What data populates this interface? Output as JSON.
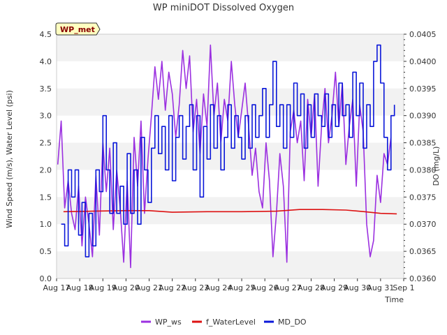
{
  "chart_data": {
    "type": "line",
    "title": "WP miniDOT Dissolved Oxygen",
    "xlabel": "Time",
    "ylabel": "Wind Speed (m/s), Water Level (psi)",
    "y2label": "DO (mg/L)",
    "annotation": "WP_met",
    "x_tick_labels": [
      "Aug 17",
      "Aug 18",
      "Aug 19",
      "Aug 20",
      "Aug 21",
      "Aug 22",
      "Aug 23",
      "Aug 24",
      "Aug 25",
      "Aug 26",
      "Aug 27",
      "Aug 28",
      "Aug 29",
      "Aug 30",
      "Aug 31",
      "Sep 1"
    ],
    "xlim": [
      0,
      15
    ],
    "ylim": [
      0,
      4.5
    ],
    "y_ticks": [
      0.0,
      0.5,
      1.0,
      1.5,
      2.0,
      2.5,
      3.0,
      3.5,
      4.0,
      4.5
    ],
    "y2lim": [
      0.036,
      0.0405
    ],
    "y2_ticks": [
      0.036,
      0.0365,
      0.037,
      0.0375,
      0.038,
      0.0385,
      0.039,
      0.0395,
      0.04,
      0.0405
    ],
    "legend_position": "bottom",
    "grid": "alternating horizontal bands",
    "series": [
      {
        "name": "WP_ws",
        "color": "#9b30e0",
        "axis": "left",
        "x": [
          0.05,
          0.2,
          0.35,
          0.5,
          0.65,
          0.8,
          0.95,
          1.1,
          1.25,
          1.4,
          1.55,
          1.7,
          1.85,
          2.0,
          2.15,
          2.3,
          2.45,
          2.6,
          2.75,
          2.9,
          3.05,
          3.2,
          3.35,
          3.5,
          3.65,
          3.8,
          3.95,
          4.1,
          4.25,
          4.4,
          4.55,
          4.7,
          4.85,
          5.0,
          5.15,
          5.3,
          5.45,
          5.6,
          5.75,
          5.9,
          6.05,
          6.2,
          6.35,
          6.5,
          6.65,
          6.8,
          6.95,
          7.1,
          7.25,
          7.4,
          7.55,
          7.7,
          7.85,
          8.0,
          8.15,
          8.3,
          8.45,
          8.6,
          8.75,
          8.9,
          9.05,
          9.2,
          9.35,
          9.5,
          9.65,
          9.8,
          9.95,
          10.1,
          10.25,
          10.4,
          10.55,
          10.7,
          10.85,
          11.0,
          11.15,
          11.3,
          11.45,
          11.6,
          11.75,
          11.9,
          12.05,
          12.2,
          12.35,
          12.5,
          12.65,
          12.8,
          12.95,
          13.1,
          13.25,
          13.4,
          13.55,
          13.7,
          13.85,
          14.0,
          14.15,
          14.3,
          14.45
        ],
        "values": [
          2.1,
          2.9,
          1.3,
          1.8,
          1.2,
          0.9,
          1.7,
          0.6,
          1.5,
          1.0,
          0.4,
          1.9,
          0.8,
          2.5,
          1.6,
          2.4,
          0.9,
          2.0,
          1.3,
          0.3,
          1.8,
          0.2,
          2.6,
          1.7,
          2.9,
          1.2,
          2.2,
          3.0,
          3.9,
          3.3,
          4.0,
          3.1,
          3.8,
          3.4,
          2.6,
          3.2,
          4.2,
          3.5,
          4.1,
          2.7,
          3.3,
          2.3,
          3.4,
          2.8,
          4.3,
          3.0,
          3.6,
          2.5,
          3.3,
          2.9,
          4.0,
          3.2,
          2.6,
          3.1,
          3.6,
          2.8,
          1.9,
          2.4,
          1.6,
          1.3,
          2.5,
          1.8,
          0.4,
          1.2,
          2.3,
          1.7,
          0.3,
          2.7,
          3.1,
          2.5,
          2.9,
          1.8,
          3.3,
          2.6,
          3.4,
          1.7,
          2.8,
          3.5,
          2.5,
          3.0,
          3.8,
          2.8,
          3.6,
          2.1,
          2.8,
          3.3,
          1.7,
          3.2,
          2.7,
          1.0,
          0.4,
          0.7,
          1.9,
          1.4,
          2.3,
          2.1,
          2.6
        ]
      },
      {
        "name": "f_WaterLevel",
        "color": "#dd1111",
        "axis": "left",
        "x": [
          0.3,
          1.5,
          3.0,
          4.0,
          5.0,
          6.5,
          8.0,
          9.5,
          10.5,
          11.5,
          12.5,
          13.3,
          14.0,
          14.7
        ],
        "values": [
          1.23,
          1.24,
          1.25,
          1.25,
          1.22,
          1.23,
          1.23,
          1.24,
          1.27,
          1.27,
          1.26,
          1.23,
          1.2,
          1.19
        ]
      },
      {
        "name": "MD_DO",
        "color": "#0a17d9",
        "axis": "right",
        "x": [
          0.2,
          0.35,
          0.5,
          0.65,
          0.8,
          0.95,
          1.1,
          1.25,
          1.4,
          1.55,
          1.7,
          1.85,
          2.0,
          2.15,
          2.3,
          2.45,
          2.6,
          2.75,
          2.9,
          3.05,
          3.2,
          3.35,
          3.5,
          3.65,
          3.8,
          3.95,
          4.1,
          4.25,
          4.4,
          4.55,
          4.7,
          4.85,
          5.0,
          5.15,
          5.3,
          5.45,
          5.6,
          5.75,
          5.9,
          6.05,
          6.2,
          6.35,
          6.5,
          6.65,
          6.8,
          6.95,
          7.1,
          7.25,
          7.4,
          7.55,
          7.7,
          7.85,
          8.0,
          8.15,
          8.3,
          8.45,
          8.6,
          8.75,
          8.9,
          9.05,
          9.2,
          9.35,
          9.5,
          9.65,
          9.8,
          9.95,
          10.1,
          10.25,
          10.4,
          10.55,
          10.7,
          10.85,
          11.0,
          11.15,
          11.3,
          11.45,
          11.6,
          11.75,
          11.9,
          12.05,
          12.2,
          12.35,
          12.5,
          12.65,
          12.8,
          12.95,
          13.1,
          13.25,
          13.4,
          13.55,
          13.7,
          13.85,
          14.0,
          14.15,
          14.3,
          14.45,
          14.6
        ],
        "values": [
          0.037,
          0.0366,
          0.038,
          0.0375,
          0.038,
          0.0368,
          0.0374,
          0.0364,
          0.0372,
          0.0366,
          0.038,
          0.0376,
          0.039,
          0.038,
          0.0372,
          0.0385,
          0.0372,
          0.0377,
          0.037,
          0.0383,
          0.0372,
          0.038,
          0.037,
          0.0386,
          0.038,
          0.0374,
          0.0384,
          0.039,
          0.0383,
          0.0388,
          0.038,
          0.039,
          0.0378,
          0.0386,
          0.039,
          0.0382,
          0.0388,
          0.0392,
          0.038,
          0.039,
          0.0375,
          0.0388,
          0.0382,
          0.0392,
          0.0384,
          0.039,
          0.038,
          0.0386,
          0.0392,
          0.0384,
          0.039,
          0.0386,
          0.0382,
          0.039,
          0.0384,
          0.0392,
          0.0386,
          0.039,
          0.0395,
          0.0386,
          0.0392,
          0.04,
          0.0388,
          0.0392,
          0.0384,
          0.0392,
          0.0386,
          0.0396,
          0.039,
          0.0394,
          0.0384,
          0.0392,
          0.0386,
          0.0394,
          0.039,
          0.0388,
          0.0394,
          0.0386,
          0.0392,
          0.0388,
          0.0396,
          0.039,
          0.0392,
          0.0386,
          0.0398,
          0.039,
          0.0396,
          0.0384,
          0.0392,
          0.0388,
          0.04,
          0.0403,
          0.0396,
          0.0386,
          0.038,
          0.039,
          0.0392
        ]
      }
    ]
  }
}
